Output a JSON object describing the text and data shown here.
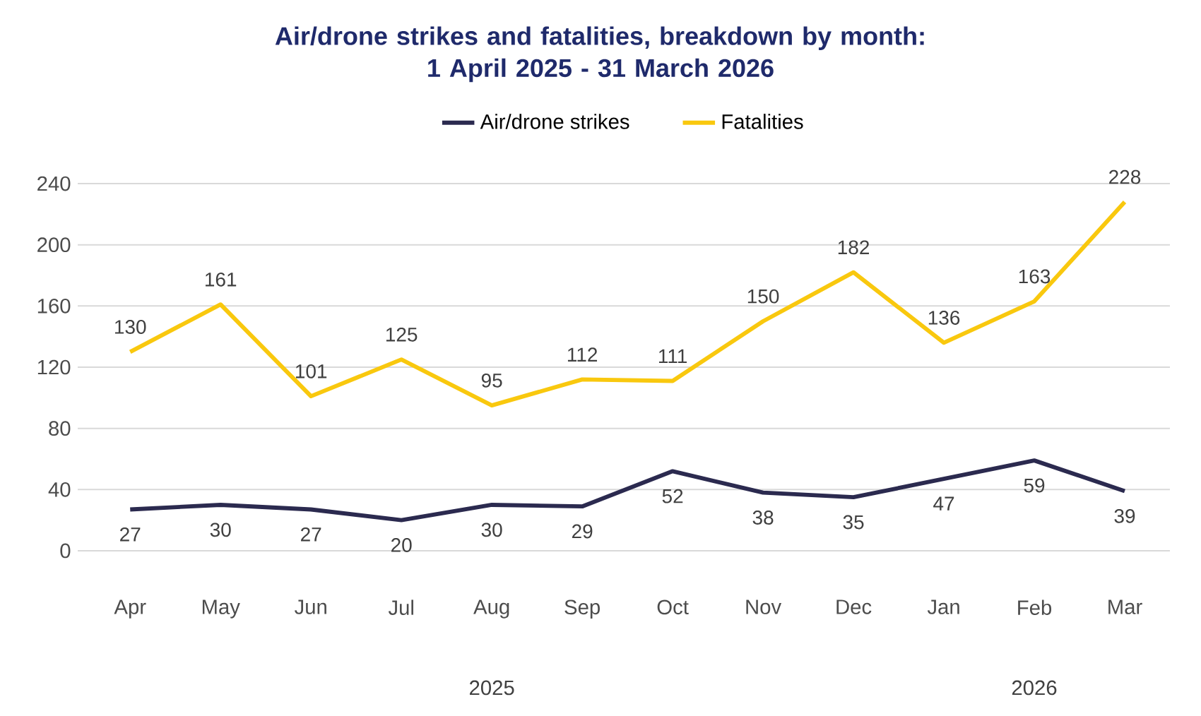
{
  "chart_data": {
    "type": "line",
    "title": "Air/drone strikes and fatalities, breakdown by month:\n1 April 2025 - 31 March 2026",
    "categories": [
      "Apr",
      "May",
      "Jun",
      "Jul",
      "Aug",
      "Sep",
      "Oct",
      "Nov",
      "Dec",
      "Jan",
      "Feb",
      "Mar"
    ],
    "series": [
      {
        "name": "Air/drone strikes",
        "color": "#2b2a4f",
        "values": [
          27,
          30,
          27,
          20,
          30,
          29,
          52,
          38,
          35,
          47,
          59,
          39
        ]
      },
      {
        "name": "Fatalities",
        "color": "#f9c80e",
        "values": [
          130,
          161,
          101,
          125,
          95,
          112,
          111,
          150,
          182,
          136,
          163,
          228
        ]
      }
    ],
    "ylim": [
      0,
      240
    ],
    "yticks": [
      0,
      40,
      80,
      120,
      160,
      200,
      240
    ],
    "grid": "y",
    "legend": "top",
    "data_labels": true,
    "marker": "none",
    "line_style": "solid",
    "annotations": [
      "2025",
      "2026"
    ]
  }
}
